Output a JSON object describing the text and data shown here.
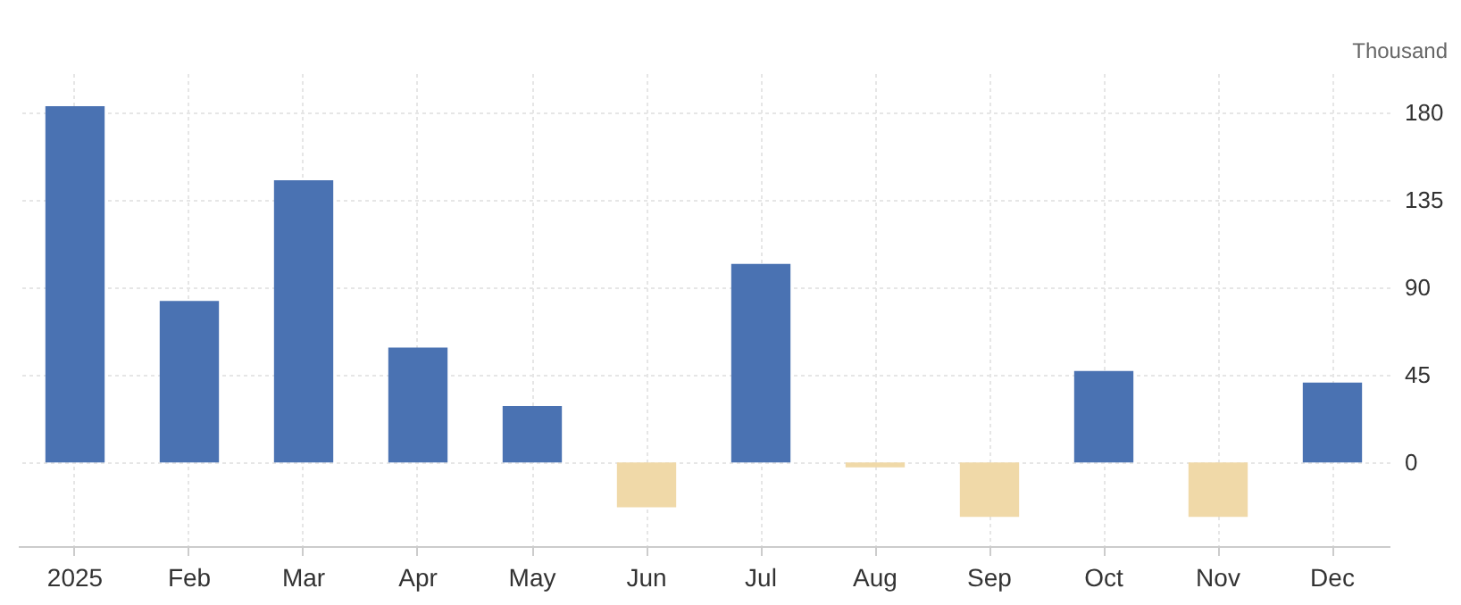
{
  "chart_data": {
    "type": "bar",
    "ylabel": "Thousand",
    "categories": [
      "2025",
      "Feb",
      "Mar",
      "Apr",
      "May",
      "Jun",
      "Jul",
      "Aug",
      "Sep",
      "Oct",
      "Nov",
      "Dec"
    ],
    "values": [
      183,
      83,
      145,
      59,
      29,
      -23,
      102,
      -2.5,
      -28,
      47,
      -28,
      41
    ],
    "colors": [
      "#4a72b2",
      "#4a72b2",
      "#4a72b2",
      "#4a72b2",
      "#4a72b2",
      "#f0d9a8",
      "#4a72b2",
      "#f0d9a8",
      "#f0d9a8",
      "#4a72b2",
      "#f0d9a8",
      "#4a72b2"
    ],
    "ylim": [
      -43,
      200
    ],
    "yticks": [
      0,
      45,
      90,
      135,
      180
    ],
    "grid": true
  }
}
